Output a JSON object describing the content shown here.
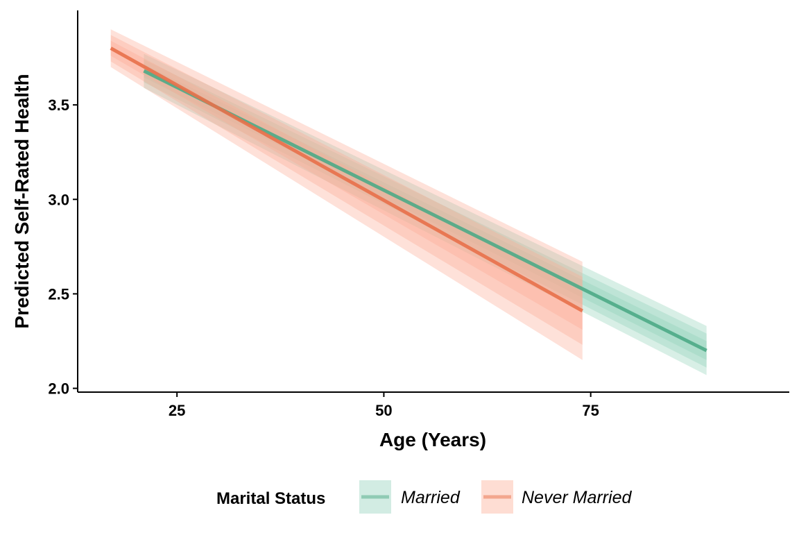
{
  "chart_data": {
    "type": "line",
    "title": "",
    "xlabel": "Age (Years)",
    "ylabel": "Predicted Self-Rated Health",
    "xlim": [
      13,
      99
    ],
    "ylim": [
      1.98,
      4.0
    ],
    "x_ticks": [
      25,
      50,
      75
    ],
    "y_ticks": [
      2.0,
      2.5,
      3.0,
      3.5
    ],
    "x_tick_labels": [
      "25",
      "50",
      "75"
    ],
    "y_tick_labels": [
      "2.0",
      "2.5",
      "3.0",
      "3.5"
    ],
    "grid": false,
    "legend": {
      "title": "Marital Status",
      "position": "bottom"
    },
    "series": [
      {
        "name": "Married",
        "color": "#4DAA86",
        "band_color": "#8FD0B8",
        "x": [
          21,
          89
        ],
        "y": [
          3.68,
          2.2
        ],
        "ci_halfwidth": {
          "outer": [
            0.09,
            0.13
          ],
          "middle": [
            0.06,
            0.09
          ],
          "inner": [
            0.035,
            0.05
          ]
        }
      },
      {
        "name": "Never Married",
        "color": "#E8704A",
        "band_color": "#FCA992",
        "x": [
          17,
          74
        ],
        "y": [
          3.8,
          2.41
        ],
        "ci_halfwidth": {
          "outer": [
            0.1,
            0.26
          ],
          "middle": [
            0.07,
            0.18
          ],
          "inner": [
            0.04,
            0.1
          ]
        }
      }
    ]
  }
}
